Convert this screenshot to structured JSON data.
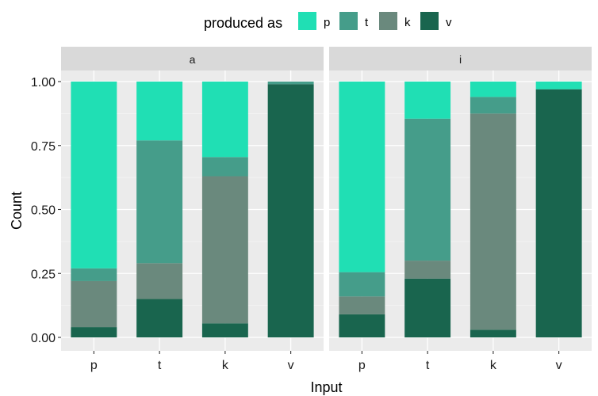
{
  "chart_data": {
    "type": "bar",
    "stacked": true,
    "xlabel": "Input",
    "ylabel": "Count",
    "ylim": [
      0,
      1
    ],
    "yticks": [
      "0.00",
      "0.25",
      "0.50",
      "0.75",
      "1.00"
    ],
    "categories": [
      "p",
      "t",
      "k",
      "v"
    ],
    "legend": {
      "title": "produced as",
      "position": "top",
      "entries": [
        "p",
        "t",
        "k",
        "v"
      ]
    },
    "colors": {
      "p": "#20dfb4",
      "t": "#459d8a",
      "k": "#6a897d",
      "v": "#19654e"
    },
    "grid": true,
    "facets": [
      {
        "label": "a",
        "series": [
          {
            "name": "v",
            "values": [
              0.04,
              0.15,
              0.055,
              0.99
            ]
          },
          {
            "name": "k",
            "values": [
              0.18,
              0.14,
              0.575,
              0.0
            ]
          },
          {
            "name": "t",
            "values": [
              0.05,
              0.48,
              0.075,
              0.01
            ]
          },
          {
            "name": "p",
            "values": [
              0.73,
              0.23,
              0.295,
              0.0
            ]
          }
        ]
      },
      {
        "label": "i",
        "series": [
          {
            "name": "v",
            "values": [
              0.09,
              0.23,
              0.03,
              0.97
            ]
          },
          {
            "name": "k",
            "values": [
              0.07,
              0.07,
              0.845,
              0.0
            ]
          },
          {
            "name": "t",
            "values": [
              0.095,
              0.555,
              0.065,
              0.0
            ]
          },
          {
            "name": "p",
            "values": [
              0.745,
              0.145,
              0.06,
              0.03
            ]
          }
        ]
      }
    ]
  }
}
